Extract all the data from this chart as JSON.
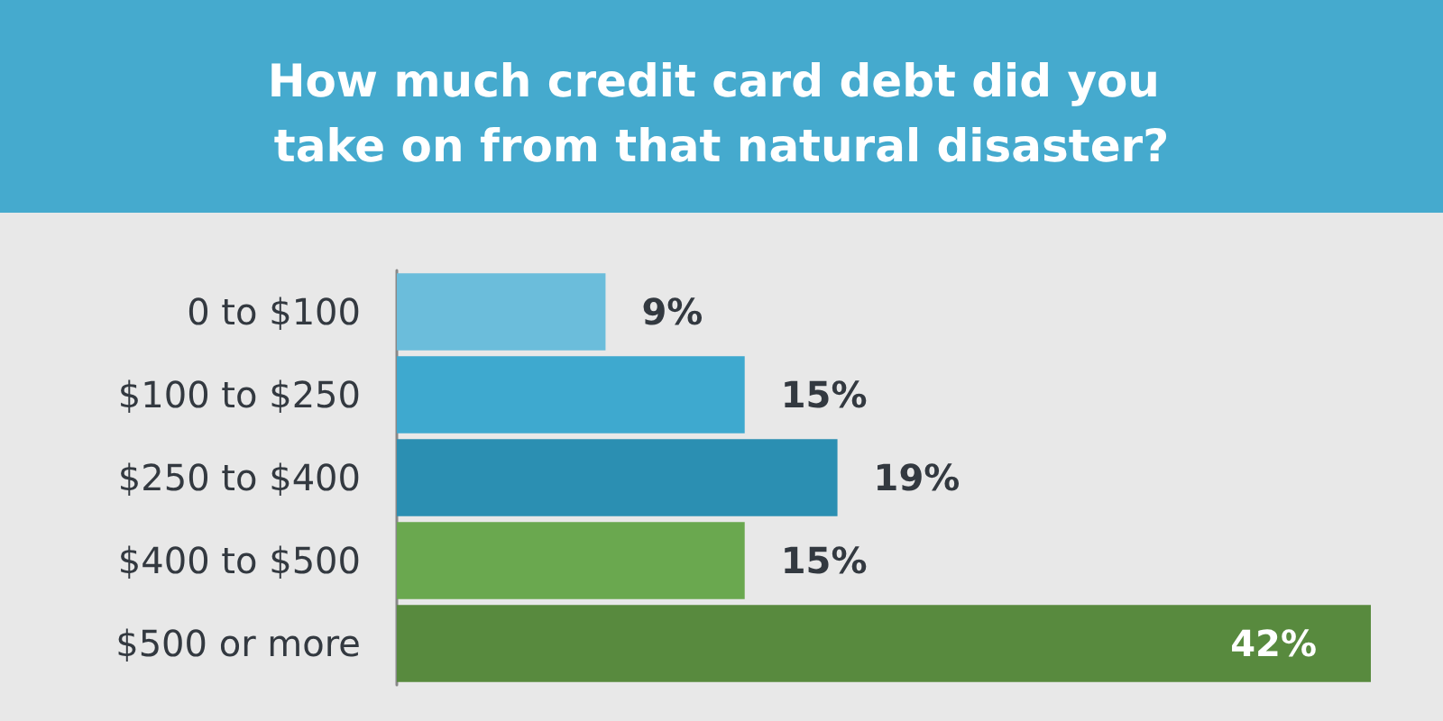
{
  "chart_data": {
    "type": "bar",
    "orientation": "horizontal",
    "title": "How much credit card debt did you take on from that natural disaster?",
    "categories": [
      "0 to $100",
      "$100 to $250",
      "$250 to $400",
      "$400 to $500",
      "$500 or more"
    ],
    "values": [
      9,
      15,
      19,
      15,
      42
    ],
    "colors": [
      "#6bbddb",
      "#3ea9cf",
      "#2b8fb2",
      "#6aa84f",
      "#588a3e"
    ],
    "value_labels": [
      "9%",
      "15%",
      "19%",
      "15%",
      "42%"
    ]
  }
}
